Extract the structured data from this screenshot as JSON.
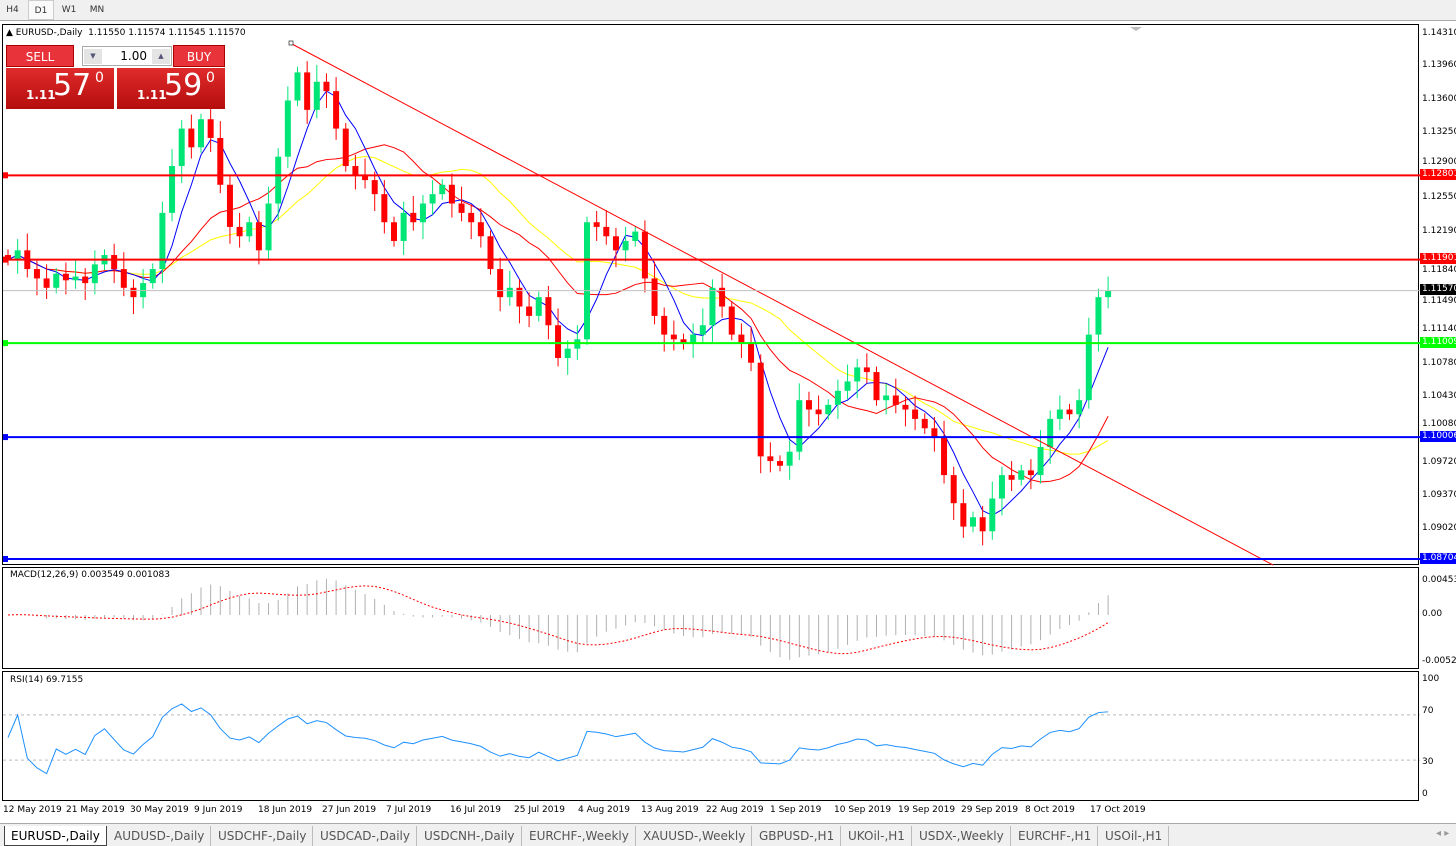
{
  "timeframes": [
    "H4",
    "D1",
    "W1",
    "MN"
  ],
  "active_timeframe": "D1",
  "header": {
    "symbol": "EURUSD-,Daily",
    "ohlc": "1.11550 1.11574 1.11545 1.11570"
  },
  "trade_panel": {
    "sell_label": "SELL",
    "buy_label": "BUY",
    "lot": "1.00",
    "sell_prefix": "1.11",
    "sell_big": "57",
    "sell_sup": "0",
    "buy_prefix": "1.11",
    "buy_big": "59",
    "buy_sup": "0"
  },
  "price_axis": [
    "1.14310",
    "1.13960",
    "1.13600",
    "1.13250",
    "1.12900",
    "1.12550",
    "1.12190",
    "1.11840",
    "1.11490",
    "1.11140",
    "1.10780",
    "1.10430",
    "1.10080",
    "1.09720",
    "1.09370",
    "1.09020"
  ],
  "levels": [
    {
      "price": 1.12801,
      "label": "1.12801",
      "color": "#ff0000"
    },
    {
      "price": 1.11901,
      "label": "1.11901",
      "color": "#ff0000"
    },
    {
      "price": 1.11009,
      "label": "1.11009",
      "color": "#00ff00"
    },
    {
      "price": 1.10006,
      "label": "1.10006",
      "color": "#0000ff"
    },
    {
      "price": 1.08704,
      "label": "1.08704",
      "color": "#0000ff"
    }
  ],
  "current_price": {
    "price": 1.1157,
    "label": "1.11570"
  },
  "macd": {
    "label": "MACD(12,26,9) 0.003549 0.001083",
    "axis": [
      "0.00453",
      "0.00",
      "-0.00520"
    ]
  },
  "rsi": {
    "label": "RSI(14) 69.7155",
    "axis": [
      "100",
      "70",
      "30",
      "0"
    ]
  },
  "dates": [
    "12 May 2019",
    "21 May 2019",
    "30 May 2019",
    "9 Jun 2019",
    "18 Jun 2019",
    "27 Jun 2019",
    "7 Jul 2019",
    "16 Jul 2019",
    "25 Jul 2019",
    "4 Aug 2019",
    "13 Aug 2019",
    "22 Aug 2019",
    "1 Sep 2019",
    "10 Sep 2019",
    "19 Sep 2019",
    "29 Sep 2019",
    "8 Oct 2019",
    "17 Oct 2019"
  ],
  "tabs": [
    "EURUSD-,Daily",
    "AUDUSD-,Daily",
    "USDCHF-,Daily",
    "USDCAD-,Daily",
    "USDCNH-,Daily",
    "EURCHF-,Weekly",
    "XAUUSD-,Weekly",
    "GBPUSD-,H1",
    "UKOil-,H1",
    "USDX-,Weekly",
    "EURCHF-,H1",
    "USOil-,H1"
  ],
  "active_tab": "EURUSD-,Daily",
  "colors": {
    "bull": "#00e676",
    "bear": "#ff0000",
    "ma_fast": "#0000ff",
    "ma_mid": "#ff0000",
    "ma_slow": "#ffff00",
    "trendline": "#ff0000",
    "rsi": "#1e90ff",
    "macd_signal": "#ff0000"
  },
  "chart_data": {
    "type": "candlestick",
    "price_range": [
      1.0862,
      1.1443
    ],
    "closes": [
      1.119,
      1.12,
      1.118,
      1.117,
      1.116,
      1.1175,
      1.1168,
      1.1172,
      1.1165,
      1.1185,
      1.1195,
      1.118,
      1.116,
      1.115,
      1.1165,
      1.118,
      1.124,
      1.129,
      1.133,
      1.131,
      1.134,
      1.132,
      1.127,
      1.1225,
      1.1215,
      1.123,
      1.12,
      1.125,
      1.13,
      1.136,
      1.139,
      1.135,
      1.138,
      1.137,
      1.133,
      1.129,
      1.128,
      1.1275,
      1.126,
      1.123,
      1.121,
      1.124,
      1.123,
      1.125,
      1.126,
      1.127,
      1.125,
      1.124,
      1.123,
      1.1215,
      1.118,
      1.115,
      1.116,
      1.114,
      1.113,
      1.115,
      1.112,
      1.1085,
      1.1095,
      1.1105,
      1.123,
      1.1225,
      1.1215,
      1.12,
      1.121,
      1.122,
      1.117,
      1.113,
      1.111,
      1.1105,
      1.11,
      1.111,
      1.112,
      1.116,
      1.114,
      1.111,
      1.11,
      1.108,
      1.098,
      1.0975,
      1.097,
      1.0985,
      1.104,
      1.103,
      1.1025,
      1.1035,
      1.105,
      1.106,
      1.1075,
      1.107,
      1.104,
      1.1045,
      1.1035,
      1.103,
      1.102,
      1.101,
      1.1,
      1.096,
      1.093,
      1.0905,
      1.0915,
      1.09,
      1.0935,
      1.096,
      1.0955,
      1.0965,
      1.096,
      1.099,
      1.102,
      1.103,
      1.1025,
      1.104,
      1.111,
      1.115,
      1.1157
    ]
  }
}
